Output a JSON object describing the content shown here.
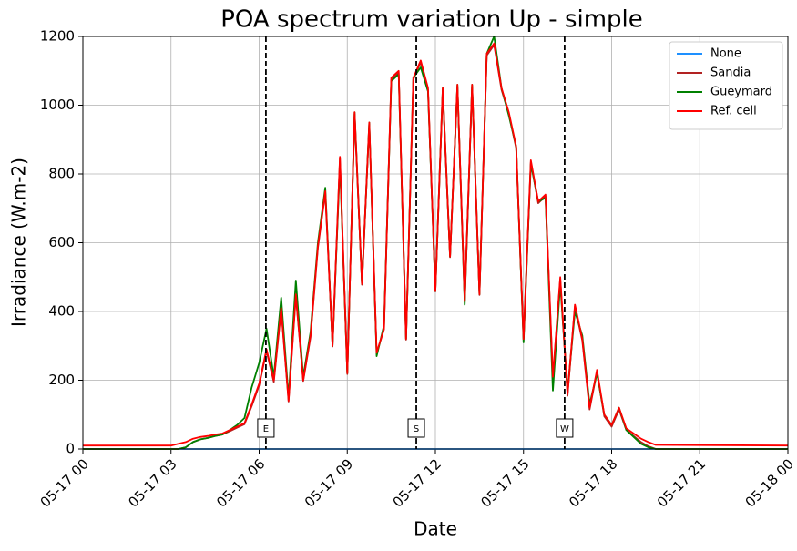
{
  "chart_data": {
    "type": "line",
    "title": "POA spectrum variation Up - simple",
    "x_label": "Date",
    "y_label": "Irradiance (W.m-2)",
    "x": [
      0,
      3,
      3.25,
      3.5,
      3.75,
      4,
      4.25,
      4.5,
      4.75,
      5,
      5.25,
      5.5,
      5.75,
      6,
      6.25,
      6.5,
      6.75,
      7,
      7.25,
      7.5,
      7.75,
      8,
      8.25,
      8.5,
      8.75,
      9,
      9.25,
      9.5,
      9.75,
      10,
      10.25,
      10.5,
      10.75,
      11,
      11.25,
      11.5,
      11.75,
      12,
      12.25,
      12.5,
      12.75,
      13,
      13.25,
      13.5,
      13.75,
      14,
      14.25,
      14.5,
      14.75,
      15,
      15.25,
      15.5,
      15.75,
      16,
      16.25,
      16.5,
      16.75,
      17,
      17.25,
      17.5,
      17.75,
      18,
      18.25,
      18.5,
      18.75,
      19,
      19.25,
      19.5,
      24
    ],
    "series": [
      {
        "name": "None",
        "color": "#1e90ff",
        "values": [
          0,
          0,
          0,
          0,
          0,
          0,
          0,
          0,
          0,
          0,
          0,
          0,
          0,
          0,
          0,
          0,
          0,
          0,
          0,
          0,
          0,
          0,
          0,
          0,
          0,
          0,
          0,
          0,
          0,
          0,
          0,
          0,
          0,
          0,
          0,
          0,
          0,
          0,
          0,
          0,
          0,
          0,
          0,
          0,
          0,
          0,
          0,
          0,
          0,
          0,
          0,
          0,
          0,
          0,
          0,
          0,
          0,
          0,
          0,
          0,
          0,
          0,
          0,
          0,
          0,
          0,
          0,
          0,
          0
        ]
      },
      {
        "name": "Sandia",
        "color": "#b22222",
        "values": [
          0,
          0,
          0,
          5,
          20,
          28,
          32,
          38,
          42,
          52,
          62,
          72,
          125,
          185,
          285,
          195,
          405,
          138,
          445,
          198,
          325,
          585,
          745,
          298,
          845,
          218,
          975,
          478,
          945,
          278,
          348,
          1075,
          1095,
          318,
          1075,
          1125,
          1045,
          458,
          1045,
          558,
          1055,
          428,
          1055,
          448,
          1145,
          1175,
          1045,
          975,
          875,
          318,
          835,
          715,
          735,
          205,
          495,
          155,
          415,
          315,
          115,
          225,
          95,
          65,
          115,
          55,
          38,
          20,
          8,
          0,
          0
        ]
      },
      {
        "name": "Gueymard",
        "color": "#008000",
        "values": [
          0,
          0,
          0,
          5,
          20,
          28,
          32,
          38,
          42,
          55,
          70,
          90,
          180,
          250,
          350,
          210,
          440,
          150,
          490,
          210,
          340,
          600,
          760,
          300,
          830,
          220,
          980,
          480,
          950,
          270,
          360,
          1070,
          1090,
          320,
          1080,
          1110,
          1040,
          460,
          1050,
          560,
          1060,
          420,
          1060,
          450,
          1150,
          1200,
          1050,
          970,
          880,
          310,
          830,
          720,
          730,
          170,
          480,
          170,
          400,
          330,
          130,
          220,
          100,
          70,
          120,
          55,
          35,
          15,
          5,
          0,
          0
        ]
      },
      {
        "name": "Ref. cell",
        "color": "#ff0000",
        "values": [
          10,
          10,
          15,
          20,
          30,
          35,
          38,
          42,
          45,
          55,
          65,
          75,
          130,
          190,
          290,
          200,
          410,
          140,
          450,
          200,
          330,
          590,
          750,
          300,
          850,
          220,
          980,
          480,
          950,
          280,
          350,
          1080,
          1100,
          320,
          1080,
          1130,
          1050,
          460,
          1050,
          560,
          1060,
          430,
          1060,
          450,
          1150,
          1180,
          1050,
          980,
          880,
          320,
          840,
          720,
          740,
          210,
          500,
          160,
          420,
          320,
          120,
          230,
          100,
          70,
          120,
          60,
          45,
          30,
          20,
          12,
          10
        ]
      }
    ],
    "vlines": [
      {
        "x": 6.23,
        "label": "E"
      },
      {
        "x": 11.35,
        "label": "S"
      },
      {
        "x": 16.4,
        "label": "W"
      }
    ],
    "xlim": [
      0,
      24
    ],
    "xticks": [
      {
        "value": 0,
        "label": "05-17 00"
      },
      {
        "value": 3,
        "label": "05-17 03"
      },
      {
        "value": 6,
        "label": "05-17 06"
      },
      {
        "value": 9,
        "label": "05-17 09"
      },
      {
        "value": 12,
        "label": "05-17 12"
      },
      {
        "value": 15,
        "label": "05-17 15"
      },
      {
        "value": 18,
        "label": "05-17 18"
      },
      {
        "value": 21,
        "label": "05-17 21"
      },
      {
        "value": 24,
        "label": "05-18 00"
      }
    ],
    "ylim": [
      0,
      1200
    ],
    "yticks": [
      0,
      200,
      400,
      600,
      800,
      1000,
      1200
    ],
    "grid": true,
    "legend": "upper right"
  }
}
